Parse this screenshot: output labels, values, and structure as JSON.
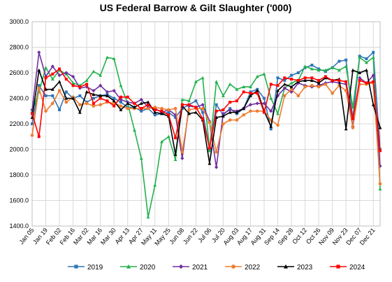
{
  "chart_data": {
    "type": "line",
    "title": "US Federal Barrow & Gilt Slaughter ('000)",
    "xlabel": "",
    "ylabel": "",
    "ylim": [
      1400,
      3000
    ],
    "yticks": [
      "1400.0",
      "1600.0",
      "1800.0",
      "2000.0",
      "2200.0",
      "2400.0",
      "2600.0",
      "2800.0",
      "3000.0"
    ],
    "grid": true,
    "legend_position": "bottom",
    "x_week_count": 52,
    "xtick_labels": [
      {
        "week": 0,
        "label": "Jan 05"
      },
      {
        "week": 2,
        "label": "Jan 19"
      },
      {
        "week": 4,
        "label": "Feb 02"
      },
      {
        "week": 6,
        "label": "Feb 16"
      },
      {
        "week": 8,
        "label": "Mar 02"
      },
      {
        "week": 10,
        "label": "Mar 16"
      },
      {
        "week": 12,
        "label": "Mar 30"
      },
      {
        "week": 14,
        "label": "Apr 13"
      },
      {
        "week": 16,
        "label": "Apr 27"
      },
      {
        "week": 18,
        "label": "May 11"
      },
      {
        "week": 20,
        "label": "May 25"
      },
      {
        "week": 22,
        "label": "Jun 08"
      },
      {
        "week": 24,
        "label": "Jun 22"
      },
      {
        "week": 26,
        "label": "Jul 06"
      },
      {
        "week": 28,
        "label": "Jul 20"
      },
      {
        "week": 30,
        "label": "Aug 03"
      },
      {
        "week": 32,
        "label": "Aug 17"
      },
      {
        "week": 34,
        "label": "Aug 31"
      },
      {
        "week": 36,
        "label": "Sep 14"
      },
      {
        "week": 38,
        "label": "Sep 28"
      },
      {
        "week": 40,
        "label": "Oct 12"
      },
      {
        "week": 42,
        "label": "Oct 26"
      },
      {
        "week": 44,
        "label": "Nov 09"
      },
      {
        "week": 46,
        "label": "Nov 23"
      },
      {
        "week": 48,
        "label": "Dec 07"
      },
      {
        "week": 50,
        "label": "Dec 21"
      }
    ],
    "series": [
      {
        "name": "2019",
        "color": "#2e75b6",
        "marker": "square",
        "values": [
          2200,
          2500,
          2420,
          2420,
          2310,
          2450,
          2400,
          2420,
          2370,
          2400,
          2420,
          2430,
          2400,
          2370,
          2330,
          2330,
          2300,
          2320,
          2270,
          2280,
          2290,
          2250,
          2320,
          2350,
          2380,
          2290,
          2000,
          2350,
          2270,
          2320,
          2280,
          2320,
          2450,
          2470,
          2400,
          2160,
          2560,
          2540,
          2580,
          2600,
          2640,
          2660,
          2630,
          2610,
          2640,
          2690,
          2700,
          2240,
          2730,
          2710,
          2760,
          2000
        ]
      },
      {
        "name": "2020",
        "color": "#22b14c",
        "marker": "triangle",
        "values": [
          2300,
          2450,
          2640,
          2550,
          2620,
          2590,
          2520,
          2500,
          2540,
          2610,
          2580,
          2720,
          2710,
          2500,
          2360,
          2150,
          1930,
          1470,
          1720,
          2060,
          2100,
          1920,
          2390,
          2380,
          2530,
          2560,
          1990,
          2530,
          2420,
          2510,
          2470,
          2490,
          2490,
          2570,
          2590,
          2400,
          2280,
          2480,
          2520,
          2540,
          2650,
          2630,
          2620,
          2620,
          2640,
          2620,
          2650,
          2330,
          2720,
          2680,
          2720,
          1690
        ]
      },
      {
        "name": "2021",
        "color": "#7030a0",
        "marker": "diamond",
        "values": [
          2310,
          2760,
          2570,
          2650,
          2580,
          2600,
          2570,
          2480,
          2490,
          2460,
          2500,
          2450,
          2460,
          2390,
          2370,
          2360,
          2390,
          2330,
          2320,
          2290,
          2310,
          2270,
          1930,
          2340,
          2330,
          2350,
          2220,
          1860,
          2280,
          2310,
          2300,
          2320,
          2350,
          2360,
          2360,
          2300,
          2420,
          2480,
          2450,
          2520,
          2500,
          2490,
          2500,
          2520,
          2530,
          2520,
          2510,
          2180,
          2560,
          2520,
          2580,
          1870
        ]
      },
      {
        "name": "2022",
        "color": "#ed7d31",
        "marker": "circle",
        "values": [
          2110,
          2480,
          2300,
          2360,
          2460,
          2370,
          2410,
          2350,
          2360,
          2340,
          2350,
          2370,
          2360,
          2340,
          2320,
          2320,
          2320,
          2320,
          2330,
          2320,
          2310,
          2320,
          1980,
          2310,
          2320,
          2320,
          2210,
          1980,
          2200,
          2230,
          2230,
          2270,
          2300,
          2300,
          2300,
          2230,
          2190,
          2420,
          2470,
          2420,
          2490,
          2500,
          2490,
          2510,
          2440,
          2500,
          2460,
          2170,
          2510,
          2510,
          2520,
          1730
        ]
      },
      {
        "name": "2023",
        "color": "#000000",
        "marker": "triangle",
        "values": [
          2250,
          2620,
          2470,
          2470,
          2530,
          2400,
          2400,
          2290,
          2450,
          2430,
          2420,
          2420,
          2380,
          2310,
          2360,
          2330,
          2360,
          2370,
          2290,
          2280,
          2260,
          1960,
          2340,
          2280,
          2290,
          2230,
          1890,
          2250,
          2260,
          2290,
          2290,
          2320,
          2420,
          2460,
          2300,
          2180,
          2460,
          2510,
          2490,
          2530,
          2540,
          2540,
          2520,
          2560,
          2540,
          2550,
          2160,
          2620,
          2600,
          2620,
          2350,
          2170
        ]
      },
      {
        "name": "2024",
        "color": "#ff0000",
        "marker": "square",
        "values": [
          2280,
          2100,
          2560,
          2590,
          2630,
          2550,
          2500,
          2490,
          2510,
          2360,
          2400,
          2380,
          2340,
          2410,
          2410,
          2360,
          2320,
          2350,
          2310,
          2300,
          2270,
          2090,
          2350,
          2350,
          2330,
          2240,
          2010,
          2300,
          2310,
          2370,
          2380,
          2450,
          2440,
          2440,
          2290,
          2510,
          2500,
          2560,
          2550,
          2540,
          2560,
          2560,
          2540,
          2570,
          2540,
          2540,
          2530,
          2240,
          2540,
          2520,
          2530,
          1990
        ]
      }
    ]
  }
}
